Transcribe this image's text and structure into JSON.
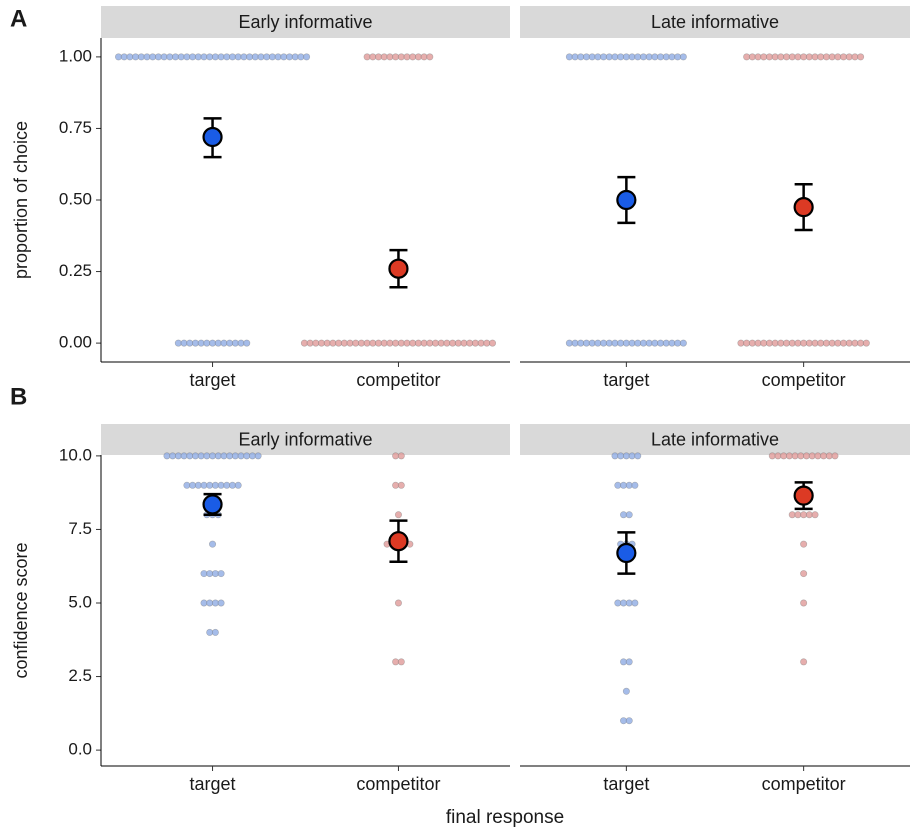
{
  "chart_data": [
    {
      "type": "dotplot",
      "label": "A",
      "ylabel": "proportion of choice",
      "ylim": [
        -0.066,
        1.066
      ],
      "yticks": [
        {
          "value": 0,
          "label": "0.00"
        },
        {
          "value": 0.25,
          "label": "0.25"
        },
        {
          "value": 0.5,
          "label": "0.50"
        },
        {
          "value": 0.75,
          "label": "0.75"
        },
        {
          "value": 1,
          "label": "1.00"
        }
      ],
      "categories": [
        "target",
        "competitor"
      ],
      "colors": [
        "#1a5ce6",
        "#dc3a24"
      ],
      "dot_colors": [
        "#8fabe4",
        "#e09a98"
      ],
      "facets": [
        {
          "title": "Early informative",
          "groups": [
            {
              "dot_values": [
                0,
                1
              ],
              "dot_counts": [
                13,
                34
              ],
              "mean": 0.72,
              "ci": [
                0.65,
                0.785
              ]
            },
            {
              "dot_values": [
                0,
                1
              ],
              "dot_counts": [
                34,
                12
              ],
              "mean": 0.26,
              "ci": [
                0.195,
                0.325
              ]
            }
          ]
        },
        {
          "title": "Late informative",
          "groups": [
            {
              "dot_values": [
                0,
                1
              ],
              "dot_counts": [
                21,
                21
              ],
              "mean": 0.5,
              "ci": [
                0.42,
                0.58
              ]
            },
            {
              "dot_values": [
                0,
                1
              ],
              "dot_counts": [
                23,
                21
              ],
              "mean": 0.475,
              "ci": [
                0.395,
                0.555
              ]
            }
          ]
        }
      ]
    },
    {
      "type": "dotplot",
      "label": "B",
      "ylabel": "confidence score",
      "xlabel": "final response",
      "ylim": [
        -0.54,
        10.03
      ],
      "yticks": [
        {
          "value": 0,
          "label": "0.0"
        },
        {
          "value": 2.5,
          "label": "2.5"
        },
        {
          "value": 5,
          "label": "5.0"
        },
        {
          "value": 7.5,
          "label": "7.5"
        },
        {
          "value": 10,
          "label": "10.0"
        }
      ],
      "categories": [
        "target",
        "competitor"
      ],
      "colors": [
        "#1a5ce6",
        "#dc3a24"
      ],
      "dot_colors": [
        "#8fabe4",
        "#e09a98"
      ],
      "facets": [
        {
          "title": "Early informative",
          "groups": [
            {
              "dot_values": [
                4,
                5,
                6,
                7,
                8,
                9,
                10
              ],
              "dot_counts": [
                2,
                4,
                4,
                1,
                3,
                10,
                17
              ],
              "mean": 8.35,
              "ci": [
                8.0,
                8.7
              ]
            },
            {
              "dot_values": [
                3,
                5,
                7,
                8,
                9,
                10
              ],
              "dot_counts": [
                2,
                1,
                5,
                1,
                2,
                2
              ],
              "mean": 7.1,
              "ci": [
                6.4,
                7.8
              ]
            }
          ]
        },
        {
          "title": "Late informative",
          "groups": [
            {
              "dot_values": [
                1,
                2,
                3,
                5,
                7,
                8,
                9,
                10
              ],
              "dot_counts": [
                2,
                1,
                2,
                4,
                3,
                2,
                4,
                5
              ],
              "mean": 6.7,
              "ci": [
                6.0,
                7.4
              ]
            },
            {
              "dot_values": [
                3,
                5,
                6,
                7,
                8,
                10
              ],
              "dot_counts": [
                1,
                1,
                1,
                1,
                5,
                12
              ],
              "mean": 8.65,
              "ci": [
                8.2,
                9.1
              ]
            }
          ]
        }
      ]
    }
  ]
}
